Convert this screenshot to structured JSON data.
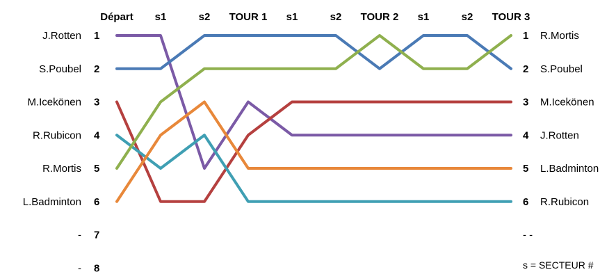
{
  "chart_data": {
    "type": "line",
    "categories": [
      "Départ",
      "s1",
      "s2",
      "TOUR 1",
      "s1",
      "s2",
      "TOUR 2",
      "s1",
      "s2",
      "TOUR 3"
    ],
    "y_axis_reversed": true,
    "ylim": [
      1,
      8
    ],
    "left_labels": [
      {
        "name": "J.Rotten",
        "rank": "1"
      },
      {
        "name": "S.Poubel",
        "rank": "2"
      },
      {
        "name": "M.Icekönen",
        "rank": "3"
      },
      {
        "name": "R.Rubicon",
        "rank": "4"
      },
      {
        "name": "R.Mortis",
        "rank": "5"
      },
      {
        "name": "L.Badminton",
        "rank": "6"
      },
      {
        "name": "-",
        "rank": "7"
      },
      {
        "name": "-",
        "rank": "8"
      }
    ],
    "right_labels": [
      {
        "rank": "1",
        "name": "R.Mortis"
      },
      {
        "rank": "2",
        "name": "S.Poubel"
      },
      {
        "rank": "3",
        "name": "M.Icekönen"
      },
      {
        "rank": "4",
        "name": "J.Rotten"
      },
      {
        "rank": "5",
        "name": "L.Badminton"
      },
      {
        "rank": "6",
        "name": "R.Rubicon"
      },
      {
        "rank": "",
        "name": "- -"
      }
    ],
    "note": "s = SECTEUR #",
    "series": [
      {
        "id": "rotten",
        "color": "#7b5aa6",
        "values": [
          1,
          1,
          5,
          3,
          4,
          4,
          4,
          4,
          4,
          4
        ]
      },
      {
        "id": "poubel",
        "color": "#4a7ab5",
        "values": [
          2,
          2,
          1,
          1,
          1,
          1,
          2,
          1,
          1,
          2
        ]
      },
      {
        "id": "icekonen",
        "color": "#b5403f",
        "values": [
          3,
          6,
          6,
          4,
          3,
          3,
          3,
          3,
          3,
          3
        ]
      },
      {
        "id": "rubicon",
        "color": "#3f9fb3",
        "values": [
          4,
          5,
          4,
          6,
          6,
          6,
          6,
          6,
          6,
          6
        ]
      },
      {
        "id": "mortis",
        "color": "#8fb04e",
        "values": [
          5,
          3,
          2,
          2,
          2,
          2,
          1,
          2,
          2,
          1
        ]
      },
      {
        "id": "badminton",
        "color": "#e8883a",
        "values": [
          6,
          4,
          3,
          5,
          5,
          5,
          5,
          5,
          5,
          5
        ]
      }
    ]
  }
}
